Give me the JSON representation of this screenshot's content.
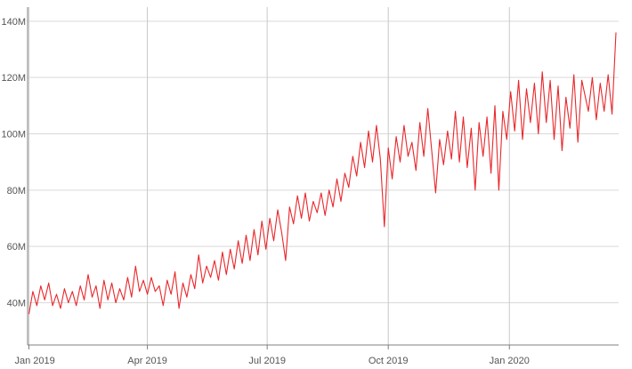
{
  "chart_data": {
    "type": "line",
    "title": "",
    "xlabel": "",
    "ylabel": "",
    "x_range": [
      "2018-12-31",
      "2020-03-24"
    ],
    "ylim": [
      25,
      145
    ],
    "grid": true,
    "x_ticks": [
      {
        "date": "2019-01-01",
        "label": "Jan 2019"
      },
      {
        "date": "2019-04-01",
        "label": "Apr 2019"
      },
      {
        "date": "2019-07-01",
        "label": "Jul 2019"
      },
      {
        "date": "2019-10-01",
        "label": "Oct 2019"
      },
      {
        "date": "2020-01-01",
        "label": "Jan 2020"
      }
    ],
    "y_ticks": [
      {
        "value": 40,
        "label": "40M"
      },
      {
        "value": 60,
        "label": "60M"
      },
      {
        "value": 80,
        "label": "80M"
      },
      {
        "value": 100,
        "label": "100M"
      },
      {
        "value": 120,
        "label": "120M"
      },
      {
        "value": 140,
        "label": "140M"
      }
    ],
    "series": [
      {
        "name": "",
        "color": "#e8272b",
        "points": [
          [
            "2019-01-01",
            36
          ],
          [
            "2019-01-04",
            44
          ],
          [
            "2019-01-07",
            39
          ],
          [
            "2019-01-10",
            46
          ],
          [
            "2019-01-13",
            41
          ],
          [
            "2019-01-16",
            47
          ],
          [
            "2019-01-19",
            39
          ],
          [
            "2019-01-22",
            43
          ],
          [
            "2019-01-25",
            38
          ],
          [
            "2019-01-28",
            45
          ],
          [
            "2019-01-31",
            40
          ],
          [
            "2019-02-03",
            44
          ],
          [
            "2019-02-06",
            39
          ],
          [
            "2019-02-09",
            46
          ],
          [
            "2019-02-12",
            41
          ],
          [
            "2019-02-15",
            50
          ],
          [
            "2019-02-18",
            42
          ],
          [
            "2019-02-21",
            46
          ],
          [
            "2019-02-24",
            38
          ],
          [
            "2019-02-27",
            48
          ],
          [
            "2019-03-02",
            41
          ],
          [
            "2019-03-05",
            47
          ],
          [
            "2019-03-08",
            40
          ],
          [
            "2019-03-11",
            45
          ],
          [
            "2019-03-14",
            41
          ],
          [
            "2019-03-17",
            49
          ],
          [
            "2019-03-20",
            42
          ],
          [
            "2019-03-23",
            53
          ],
          [
            "2019-03-26",
            44
          ],
          [
            "2019-03-29",
            48
          ],
          [
            "2019-04-01",
            43
          ],
          [
            "2019-04-04",
            49
          ],
          [
            "2019-04-07",
            44
          ],
          [
            "2019-04-10",
            46
          ],
          [
            "2019-04-13",
            39
          ],
          [
            "2019-04-16",
            48
          ],
          [
            "2019-04-19",
            43
          ],
          [
            "2019-04-22",
            51
          ],
          [
            "2019-04-25",
            38
          ],
          [
            "2019-04-28",
            47
          ],
          [
            "2019-05-01",
            42
          ],
          [
            "2019-05-04",
            50
          ],
          [
            "2019-05-07",
            45
          ],
          [
            "2019-05-10",
            57
          ],
          [
            "2019-05-13",
            47
          ],
          [
            "2019-05-16",
            53
          ],
          [
            "2019-05-19",
            49
          ],
          [
            "2019-05-22",
            55
          ],
          [
            "2019-05-25",
            48
          ],
          [
            "2019-05-28",
            58
          ],
          [
            "2019-05-31",
            50
          ],
          [
            "2019-06-03",
            59
          ],
          [
            "2019-06-06",
            52
          ],
          [
            "2019-06-09",
            62
          ],
          [
            "2019-06-12",
            54
          ],
          [
            "2019-06-15",
            64
          ],
          [
            "2019-06-18",
            55
          ],
          [
            "2019-06-21",
            66
          ],
          [
            "2019-06-24",
            57
          ],
          [
            "2019-06-27",
            69
          ],
          [
            "2019-06-30",
            59
          ],
          [
            "2019-07-03",
            70
          ],
          [
            "2019-07-06",
            62
          ],
          [
            "2019-07-09",
            73
          ],
          [
            "2019-07-12",
            65
          ],
          [
            "2019-07-15",
            55
          ],
          [
            "2019-07-18",
            74
          ],
          [
            "2019-07-21",
            68
          ],
          [
            "2019-07-24",
            78
          ],
          [
            "2019-07-27",
            70
          ],
          [
            "2019-07-30",
            79
          ],
          [
            "2019-08-02",
            69
          ],
          [
            "2019-08-05",
            76
          ],
          [
            "2019-08-08",
            72
          ],
          [
            "2019-08-11",
            79
          ],
          [
            "2019-08-14",
            71
          ],
          [
            "2019-08-17",
            80
          ],
          [
            "2019-08-20",
            74
          ],
          [
            "2019-08-23",
            84
          ],
          [
            "2019-08-26",
            76
          ],
          [
            "2019-08-29",
            86
          ],
          [
            "2019-09-01",
            81
          ],
          [
            "2019-09-04",
            92
          ],
          [
            "2019-09-07",
            85
          ],
          [
            "2019-09-10",
            97
          ],
          [
            "2019-09-13",
            88
          ],
          [
            "2019-09-16",
            101
          ],
          [
            "2019-09-19",
            90
          ],
          [
            "2019-09-22",
            103
          ],
          [
            "2019-09-25",
            91
          ],
          [
            "2019-09-28",
            67
          ],
          [
            "2019-10-01",
            95
          ],
          [
            "2019-10-04",
            84
          ],
          [
            "2019-10-07",
            99
          ],
          [
            "2019-10-10",
            90
          ],
          [
            "2019-10-13",
            103
          ],
          [
            "2019-10-16",
            92
          ],
          [
            "2019-10-19",
            97
          ],
          [
            "2019-10-22",
            87
          ],
          [
            "2019-10-25",
            104
          ],
          [
            "2019-10-28",
            92
          ],
          [
            "2019-10-31",
            109
          ],
          [
            "2019-11-03",
            94
          ],
          [
            "2019-11-06",
            79
          ],
          [
            "2019-11-09",
            98
          ],
          [
            "2019-11-12",
            89
          ],
          [
            "2019-11-15",
            101
          ],
          [
            "2019-11-18",
            91
          ],
          [
            "2019-11-21",
            108
          ],
          [
            "2019-11-24",
            90
          ],
          [
            "2019-11-27",
            106
          ],
          [
            "2019-11-30",
            88
          ],
          [
            "2019-12-03",
            102
          ],
          [
            "2019-12-06",
            80
          ],
          [
            "2019-12-09",
            104
          ],
          [
            "2019-12-12",
            92
          ],
          [
            "2019-12-15",
            106
          ],
          [
            "2019-12-18",
            86
          ],
          [
            "2019-12-21",
            110
          ],
          [
            "2019-12-24",
            80
          ],
          [
            "2019-12-27",
            108
          ],
          [
            "2019-12-30",
            98
          ],
          [
            "2020-01-02",
            115
          ],
          [
            "2020-01-05",
            101
          ],
          [
            "2020-01-08",
            119
          ],
          [
            "2020-01-11",
            98
          ],
          [
            "2020-01-14",
            116
          ],
          [
            "2020-01-17",
            104
          ],
          [
            "2020-01-20",
            118
          ],
          [
            "2020-01-23",
            100
          ],
          [
            "2020-01-26",
            122
          ],
          [
            "2020-01-29",
            104
          ],
          [
            "2020-02-01",
            119
          ],
          [
            "2020-02-04",
            98
          ],
          [
            "2020-02-07",
            117
          ],
          [
            "2020-02-10",
            94
          ],
          [
            "2020-02-13",
            113
          ],
          [
            "2020-02-16",
            102
          ],
          [
            "2020-02-19",
            121
          ],
          [
            "2020-02-22",
            97
          ],
          [
            "2020-02-25",
            119
          ],
          [
            "2020-03-01",
            108
          ],
          [
            "2020-03-04",
            120
          ],
          [
            "2020-03-07",
            105
          ],
          [
            "2020-03-10",
            118
          ],
          [
            "2020-03-13",
            108
          ],
          [
            "2020-03-16",
            121
          ],
          [
            "2020-03-19",
            107
          ],
          [
            "2020-03-22",
            136
          ]
        ]
      }
    ]
  }
}
